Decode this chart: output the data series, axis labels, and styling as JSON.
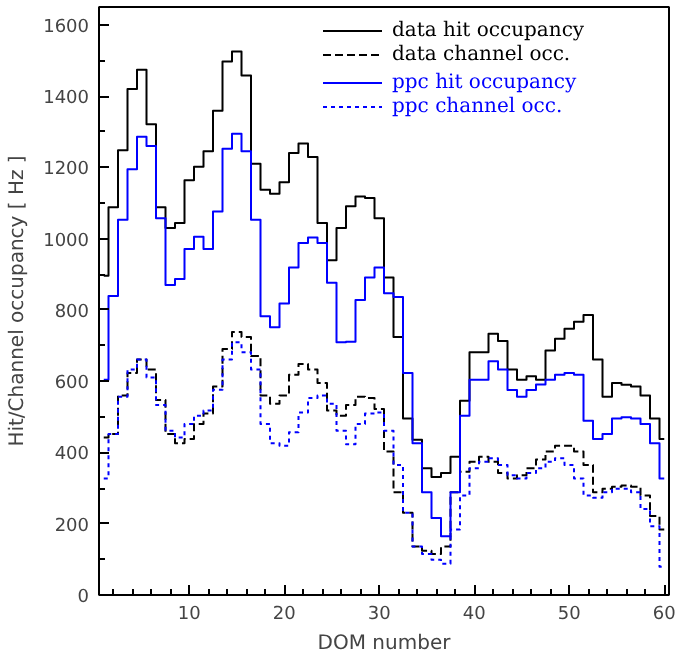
{
  "chart_data": {
    "type": "step",
    "xlabel": "DOM number",
    "ylabel": "Hit/Channel occupancy [ Hz ]",
    "x": [
      1,
      2,
      3,
      4,
      5,
      6,
      7,
      8,
      9,
      10,
      11,
      12,
      13,
      14,
      15,
      16,
      17,
      18,
      19,
      20,
      21,
      22,
      23,
      24,
      25,
      26,
      27,
      28,
      29,
      30,
      31,
      32,
      33,
      34,
      35,
      36,
      37,
      38,
      39,
      40,
      41,
      42,
      43,
      44,
      45,
      46,
      47,
      48,
      49,
      50,
      51,
      52,
      53,
      54,
      55,
      56,
      57,
      58,
      59,
      60
    ],
    "xlim": [
      0.5,
      60.5
    ],
    "xticks": [
      10,
      20,
      30,
      40,
      50,
      60
    ],
    "ylim": [
      0,
      1650
    ],
    "yticks": [
      0,
      200,
      400,
      600,
      800,
      1000,
      1200,
      1400,
      1600
    ],
    "grid": false,
    "legend": "top right",
    "marker": "none",
    "series": [
      {
        "name": "data hit occupancy",
        "color": "#000000",
        "line_style": "solid",
        "values": [
          896,
          1088,
          1248,
          1420,
          1474,
          1321,
          1088,
          1030,
          1044,
          1164,
          1202,
          1245,
          1359,
          1497,
          1525,
          1458,
          1210,
          1137,
          1126,
          1158,
          1240,
          1267,
          1229,
          1044,
          939,
          1030,
          1091,
          1118,
          1114,
          1057,
          891,
          724,
          495,
          436,
          356,
          331,
          342,
          388,
          545,
          681,
          681,
          733,
          713,
          633,
          604,
          614,
          604,
          686,
          719,
          747,
          767,
          786,
          661,
          556,
          595,
          590,
          585,
          560,
          495,
          438
        ]
      },
      {
        "name": "data channel occ.",
        "color": "#000000",
        "line_style": "dashed",
        "values": [
          442,
          452,
          560,
          623,
          661,
          633,
          547,
          452,
          426,
          438,
          480,
          509,
          585,
          690,
          738,
          724,
          671,
          560,
          537,
          560,
          618,
          648,
          633,
          595,
          518,
          503,
          533,
          556,
          553,
          522,
          403,
          288,
          231,
          136,
          124,
          115,
          136,
          288,
          346,
          374,
          388,
          374,
          342,
          327,
          336,
          356,
          380,
          403,
          419,
          419,
          403,
          365,
          288,
          298,
          304,
          307,
          304,
          279,
          222,
          184
        ]
      },
      {
        "name": "ppc hit occupancy",
        "color": "#0000ff",
        "line_style": "solid",
        "values": [
          604,
          839,
          1053,
          1195,
          1286,
          1260,
          1057,
          870,
          887,
          971,
          1005,
          971,
          1076,
          1252,
          1294,
          1245,
          1053,
          782,
          751,
          818,
          919,
          988,
          1003,
          988,
          876,
          709,
          711,
          828,
          891,
          919,
          847,
          836,
          623,
          426,
          288,
          216,
          165,
          288,
          503,
          604,
          604,
          656,
          633,
          575,
          556,
          575,
          591,
          604,
          618,
          623,
          618,
          489,
          438,
          452,
          495,
          499,
          495,
          480,
          426,
          327
        ]
      },
      {
        "name": "ppc channel occ.",
        "color": "#0000ff",
        "line_style": "dotted",
        "values": [
          327,
          452,
          556,
          633,
          661,
          610,
          533,
          461,
          442,
          480,
          503,
          518,
          576,
          661,
          709,
          681,
          633,
          480,
          426,
          419,
          457,
          512,
          553,
          560,
          537,
          461,
          423,
          480,
          509,
          512,
          461,
          365,
          231,
          136,
          115,
          99,
          88,
          184,
          279,
          356,
          374,
          384,
          365,
          336,
          327,
          342,
          356,
          374,
          384,
          365,
          327,
          279,
          273,
          288,
          298,
          298,
          288,
          241,
          193,
          79
        ]
      }
    ]
  }
}
